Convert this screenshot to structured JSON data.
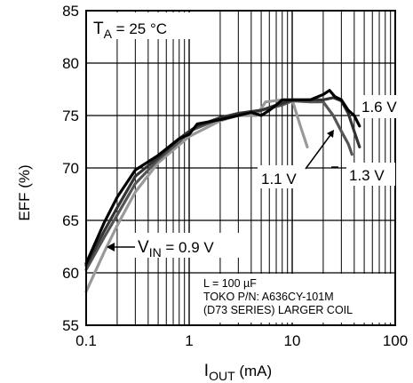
{
  "chart_data": {
    "type": "line",
    "x_scale": "log",
    "xlim": [
      0.1,
      100
    ],
    "ylim": [
      55,
      85
    ],
    "x_ticks": [
      0.1,
      1,
      10,
      100
    ],
    "x_tick_labels": [
      "0.1",
      "1",
      "10",
      "100"
    ],
    "y_ticks": [
      55,
      60,
      65,
      70,
      75,
      80,
      85
    ],
    "y_tick_labels": [
      "55",
      "60",
      "65",
      "70",
      "75",
      "80",
      "85"
    ],
    "grid": true,
    "xlabel_main": "I",
    "xlabel_sub": "OUT",
    "xlabel_unit": " (mA)",
    "ylabel": "EFF (%)",
    "condition_main": "T",
    "condition_sub": "A",
    "condition_value": " = 25 °C",
    "notes": [
      "L = 100 µF",
      "TOKO P/N: A636CY-101M",
      "(D73 SERIES) LARGER COIL"
    ],
    "series": [
      {
        "name": "0.9 V",
        "color": "#999999",
        "x": [
          0.1,
          0.15,
          0.2,
          0.3,
          0.5,
          0.8,
          1.0,
          2.0,
          3.0,
          4.5,
          5.5,
          8.0,
          10.0,
          12.0,
          14.0
        ],
        "y": [
          58.2,
          62,
          64.5,
          67.7,
          70.5,
          72.2,
          73,
          74.5,
          75,
          75,
          76.3,
          76.5,
          76.5,
          74,
          72
        ]
      },
      {
        "name": "1.1 V",
        "color": "#555555",
        "x": [
          0.1,
          0.15,
          0.2,
          0.3,
          0.5,
          0.8,
          1.0,
          2.0,
          3.0,
          5.0,
          8.0,
          10.0,
          15.0,
          20.0,
          25.0,
          30.0,
          35.0,
          38.0
        ],
        "y": [
          60.3,
          63.4,
          65.5,
          68.5,
          70.8,
          72.5,
          73.5,
          74.7,
          75.2,
          75.5,
          76,
          76.4,
          76.3,
          76.3,
          75,
          73.5,
          72.3,
          71.3
        ]
      },
      {
        "name": "1.3 V",
        "color": "#333333",
        "x": [
          0.1,
          0.15,
          0.2,
          0.3,
          0.5,
          0.8,
          1.0,
          1.2,
          2.0,
          3.0,
          5.0,
          7.0,
          10.0,
          15.0,
          20.0,
          25.0,
          30.0,
          35.0,
          40.0,
          45.0
        ],
        "y": [
          60.7,
          64,
          66.2,
          69.2,
          71,
          72.8,
          73.5,
          74,
          74.8,
          75.2,
          75.5,
          76,
          76.5,
          76.5,
          76.5,
          76.7,
          76.4,
          75.2,
          73.5,
          72
        ]
      },
      {
        "name": "1.6 V",
        "color": "#000000",
        "x": [
          0.1,
          0.15,
          0.2,
          0.3,
          0.5,
          0.8,
          1.0,
          1.2,
          2.0,
          3.0,
          4.0,
          5.0,
          6.0,
          7.0,
          8.0,
          10.0,
          15.0,
          20.0,
          23.0,
          26.0,
          30.0,
          35.0,
          40.0,
          45.0
        ],
        "y": [
          60.9,
          64.8,
          67.2,
          69.8,
          71.2,
          72.8,
          73.2,
          74.2,
          74.6,
          75,
          75.3,
          75,
          75.5,
          76,
          76.5,
          76.5,
          76.5,
          77,
          77.4,
          76.8,
          76.5,
          75.5,
          75,
          74
        ]
      }
    ],
    "annotations": [
      {
        "text": "V",
        "sub": "IN",
        "rest": " = 0.9 V",
        "x": 0.25,
        "y": 62.2
      },
      {
        "text": "1.1 V",
        "x": 12,
        "y": 69.3
      },
      {
        "text": "1.3 V",
        "x": 58,
        "y": 69.5
      },
      {
        "text": "1.6 V",
        "x": 75,
        "y": 76.5
      }
    ]
  }
}
